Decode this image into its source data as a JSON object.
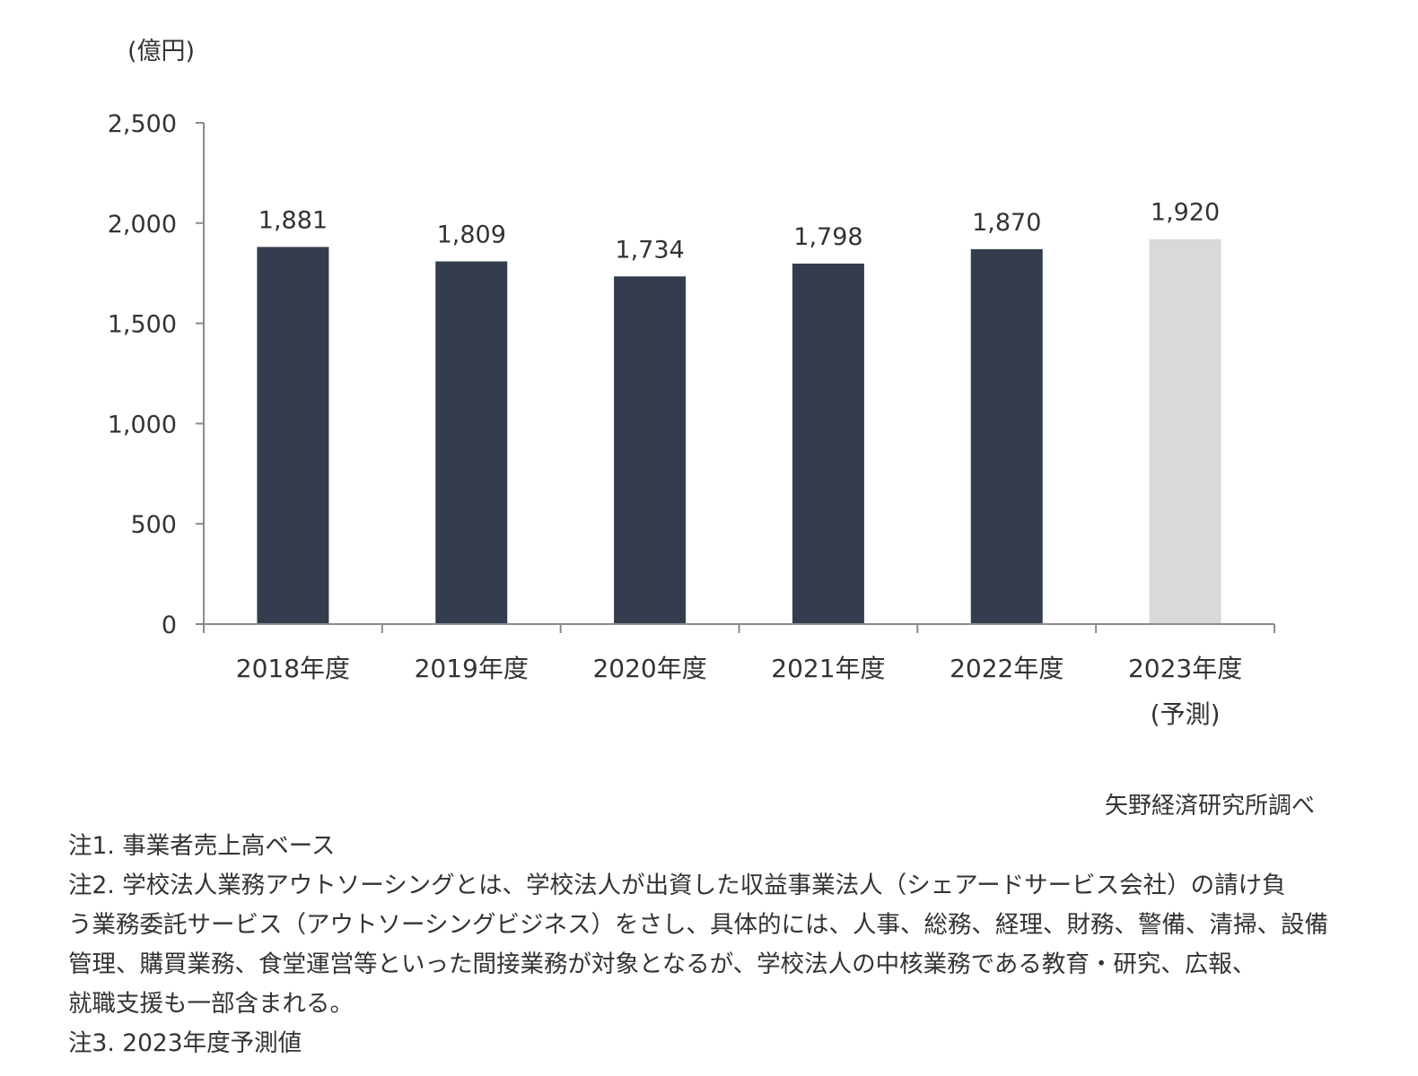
{
  "chart_data": {
    "type": "bar",
    "unit_label": "(億円)",
    "categories": [
      [
        "2018年度"
      ],
      [
        "2019年度"
      ],
      [
        "2020年度"
      ],
      [
        "2021年度"
      ],
      [
        "2022年度"
      ],
      [
        "2023年度",
        "(予測)"
      ]
    ],
    "values": [
      1881,
      1809,
      1734,
      1798,
      1870,
      1920
    ],
    "value_labels": [
      "1,881",
      "1,809",
      "1,734",
      "1,798",
      "1,870",
      "1,920"
    ],
    "forecast_index": 5,
    "ylim": [
      0,
      2500
    ],
    "y_ticks": [
      0,
      500,
      1000,
      1500,
      2000,
      2500
    ],
    "y_tick_labels": [
      "0",
      "500",
      "1,000",
      "1,500",
      "2,000",
      "2,500"
    ],
    "title": "",
    "xlabel": "",
    "ylabel": "(億円)",
    "grid": false,
    "colors": {
      "actual": "#343d4e",
      "forecast": "#d9d9d9",
      "axis": "#8a8a8a"
    }
  },
  "source": "矢野経済研究所調べ",
  "notes": [
    "注1. 事業者売上高ベース",
    "注2. 学校法人業務アウトソーシングとは、学校法人が出資した収益事業法人（シェアードサービス会社）の請け負",
    "う業務委託サービス（アウトソーシングビジネス）をさし、具体的には、人事、総務、経理、財務、警備、清掃、設備",
    "管理、購買業務、食堂運営等といった間接業務が対象となるが、学校法人の中核業務である教育・研究、広報、",
    "就職支援も一部含まれる。",
    "注3. 2023年度予測値"
  ]
}
